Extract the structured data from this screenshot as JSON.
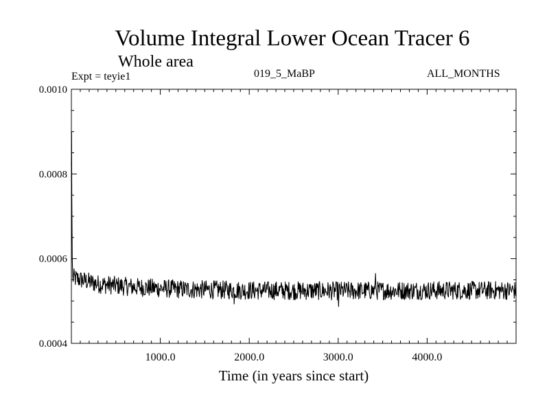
{
  "chart_data": {
    "type": "line",
    "title": "Volume Integral Lower Ocean Tracer 6",
    "subtitle": "Whole area",
    "experiment_label": "Expt = teyie1",
    "period_label": "019_5_MaBP",
    "months_label": "ALL_MONTHS",
    "xlabel": "Time (in years since start)",
    "ylabel": "",
    "xlim": [
      0,
      5000
    ],
    "ylim": [
      0.0004,
      0.001
    ],
    "x_ticks": [
      {
        "value": 1000,
        "label": "1000.0"
      },
      {
        "value": 2000,
        "label": "2000.0"
      },
      {
        "value": 3000,
        "label": "3000.0"
      },
      {
        "value": 4000,
        "label": "4000.0"
      }
    ],
    "y_ticks": [
      {
        "value": 0.0004,
        "label": "0.0004"
      },
      {
        "value": 0.0006,
        "label": "0.0006"
      },
      {
        "value": 0.0008,
        "label": "0.0008"
      },
      {
        "value": 0.001,
        "label": "0.0010"
      }
    ],
    "series": [
      {
        "name": "Lower Ocean Tracer 6",
        "color": "#000000",
        "initial_spike": [
          [
            0,
            0.00082
          ],
          [
            2,
            0.0009
          ],
          [
            5,
            0.00075
          ],
          [
            10,
            0.0006
          ]
        ],
        "trend": [
          [
            15,
            0.000555
          ],
          [
            300,
            0.00054
          ],
          [
            700,
            0.000533
          ],
          [
            1200,
            0.000528
          ],
          [
            2000,
            0.000525
          ],
          [
            3000,
            0.000524
          ],
          [
            4000,
            0.000525
          ],
          [
            5000,
            0.000525
          ]
        ],
        "noise_amplitude": 2.2e-05,
        "sample_step": 5,
        "extremes": [
          [
            3420,
            0.000565
          ],
          [
            3005,
            0.000487
          ],
          [
            1830,
            0.000493
          ]
        ]
      }
    ]
  }
}
